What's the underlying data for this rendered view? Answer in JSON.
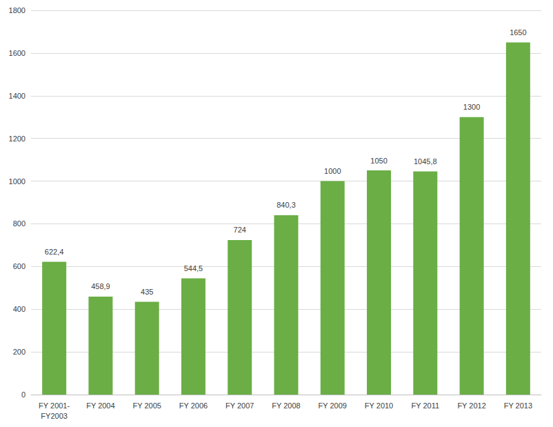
{
  "chart_data": {
    "type": "bar",
    "categories": [
      "FY 2001-\nFY2003",
      "FY 2004",
      "FY 2005",
      "FY 2006",
      "FY 2007",
      "FY 2008",
      "FY 2009",
      "FY 2010",
      "FY 2011",
      "FY 2012",
      "FY 2013"
    ],
    "values": [
      622.4,
      458.9,
      435,
      544.5,
      724,
      840.3,
      1000,
      1050,
      1045.8,
      1300,
      1650
    ],
    "value_labels": [
      "622,4",
      "458,9",
      "435",
      "544,5",
      "724",
      "840,3",
      "1000",
      "1050",
      "1045,8",
      "1300",
      "1650"
    ],
    "color": "#6aae45",
    "ylim": [
      0,
      1800
    ],
    "yticks": [
      0,
      200,
      400,
      600,
      800,
      1000,
      1200,
      1400,
      1600,
      1800
    ],
    "grid": true,
    "data_labels": true
  }
}
